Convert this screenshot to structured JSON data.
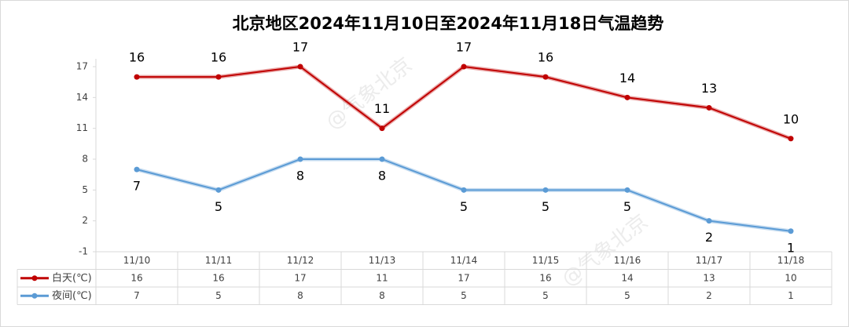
{
  "chart_data": {
    "type": "line",
    "title": "北京地区2024年11月10日至2024年11月18日气温趋势",
    "categories": [
      "11/10",
      "11/11",
      "11/12",
      "11/13",
      "11/14",
      "11/15",
      "11/16",
      "11/17",
      "11/18"
    ],
    "series": [
      {
        "name": "白天(℃)",
        "color": "#c00000",
        "values": [
          16,
          16,
          17,
          11,
          17,
          16,
          14,
          13,
          10
        ]
      },
      {
        "name": "夜间(℃)",
        "color": "#5b9bd5",
        "values": [
          7,
          5,
          8,
          8,
          5,
          5,
          5,
          2,
          1
        ]
      }
    ],
    "ylim": [
      -1,
      17
    ],
    "yticks": [
      -1,
      2,
      5,
      8,
      11,
      14,
      17
    ],
    "grid": false,
    "watermark": "@气象北京"
  }
}
